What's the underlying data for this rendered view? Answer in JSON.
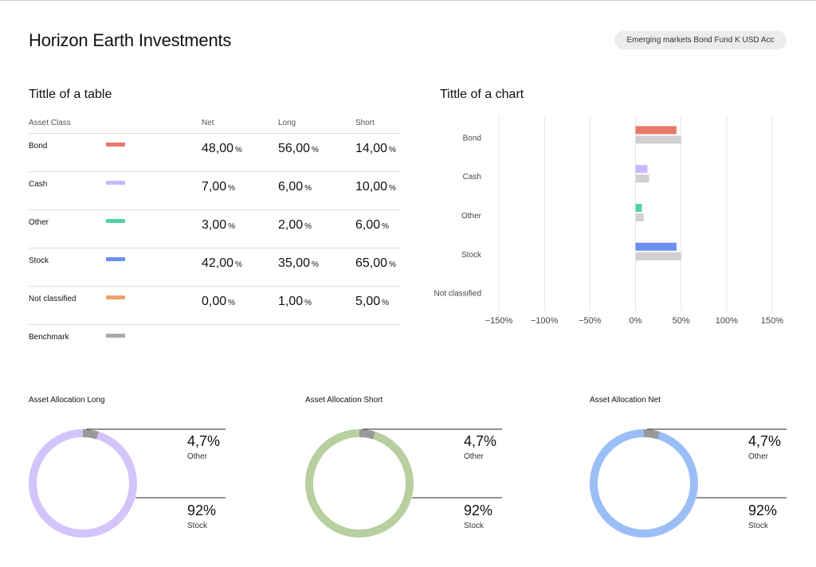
{
  "header": {
    "title": "Horizon Earth Investments",
    "fund_selector": "Emerging markets Bond Fund K USD Acc"
  },
  "table": {
    "title": "Tittle of a table",
    "columns": [
      "Asset Class",
      "Net",
      "Long",
      "Short"
    ],
    "pct_symbol": "%",
    "rows": [
      {
        "label": "Bond",
        "color": "#e8796a",
        "net": "48,00",
        "long": "56,00",
        "short": "14,00"
      },
      {
        "label": "Cash",
        "color": "#c8b8fb",
        "net": "7,00",
        "long": "6,00",
        "short": "10,00"
      },
      {
        "label": "Other",
        "color": "#4fd1a5",
        "net": "3,00",
        "long": "2,00",
        "short": "6,00"
      },
      {
        "label": "Stock",
        "color": "#6b8ff0",
        "net": "42,00",
        "long": "35,00",
        "short": "65,00"
      },
      {
        "label": "Not classified",
        "color": "#f0a26b",
        "net": "0,00",
        "long": "1,00",
        "short": "5,00"
      },
      {
        "label": "Benchmark",
        "color": "#a9a9a9"
      }
    ]
  },
  "chart_data": {
    "type": "bar",
    "orientation": "horizontal",
    "title": "Tittle of a chart",
    "categories": [
      "Bond",
      "Cash",
      "Other",
      "Stock",
      "Not classified"
    ],
    "series": [
      {
        "values": [
          45,
          13,
          7,
          45,
          0
        ],
        "colors": [
          "#e8796a",
          "#c8b8fb",
          "#4fd1a5",
          "#6b8ff0",
          "#f0a26b"
        ]
      },
      {
        "values": [
          50,
          15,
          9,
          50,
          0
        ],
        "color": "#d0d0d0"
      }
    ],
    "xlim": [
      -150,
      150
    ],
    "xticks": [
      -150,
      -100,
      -50,
      0,
      50,
      100,
      150
    ],
    "xtick_labels": [
      "−150%",
      "−100%",
      "−50%",
      "0%",
      "50%",
      "100%",
      "150%"
    ],
    "grid": true
  },
  "donuts": [
    {
      "title": "Asset Allocation Long",
      "color": "#d3c4fb",
      "top_value": "4,7%",
      "top_label": "Other",
      "bottom_value": "92%",
      "bottom_label": "Stock",
      "small_share": 0.047
    },
    {
      "title": "Asset Allocation Short",
      "color": "#b8cf9f",
      "top_value": "4,7%",
      "top_label": "Other",
      "bottom_value": "92%",
      "bottom_label": "Stock",
      "small_share": 0.047
    },
    {
      "title": "Asset Allocation Net",
      "color": "#9bbef6",
      "top_value": "4,7%",
      "top_label": "Other",
      "bottom_value": "92%",
      "bottom_label": "Stock",
      "small_share": 0.047
    }
  ],
  "colors": {
    "segment_other": "#9a9a9a",
    "grid": "#e3e3e3",
    "benchmark": "#d0d0d0"
  }
}
